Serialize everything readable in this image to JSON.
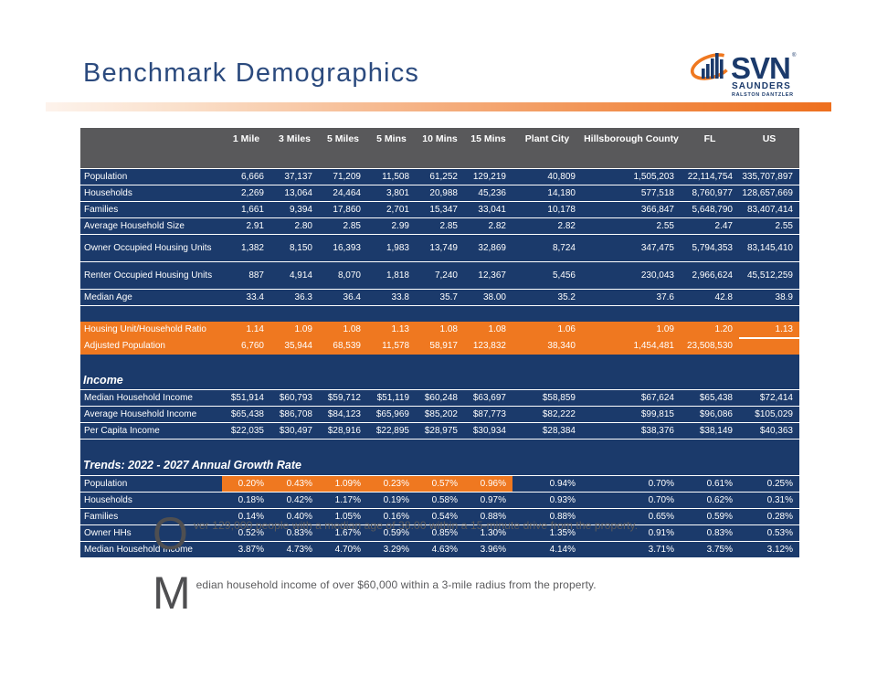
{
  "slide": {
    "title": "Benchmark Demographics",
    "logo": {
      "brand": "SVN",
      "trademark": "®",
      "line1": "SAUNDERS",
      "line2": "RALSTON DANTZLER"
    },
    "colors": {
      "navy": "#1b3a6b",
      "orange": "#ef7820",
      "header_gray": "#59595b",
      "title_blue": "#2b4a7e"
    }
  },
  "table": {
    "columns": [
      "",
      "1 Mile",
      "3 Miles",
      "5 Miles",
      "5 Mins",
      "10 Mins",
      "15 Mins",
      "Plant City",
      "Hillsborough County",
      "FL",
      "US"
    ],
    "sections": [
      {
        "type": "rows",
        "rows": [
          {
            "label": "Population",
            "values": [
              "6,666",
              "37,137",
              "71,209",
              "11,508",
              "61,252",
              "129,219",
              "40,809",
              "1,505,203",
              "22,114,754",
              "335,707,897"
            ]
          },
          {
            "label": "Households",
            "values": [
              "2,269",
              "13,064",
              "24,464",
              "3,801",
              "20,988",
              "45,236",
              "14,180",
              "577,518",
              "8,760,977",
              "128,657,669"
            ]
          },
          {
            "label": "Families",
            "values": [
              "1,661",
              "9,394",
              "17,860",
              "2,701",
              "15,347",
              "33,041",
              "10,178",
              "366,847",
              "5,648,790",
              "83,407,414"
            ]
          },
          {
            "label": "Average Household Size",
            "values": [
              "2.91",
              "2.80",
              "2.85",
              "2.99",
              "2.85",
              "2.82",
              "2.82",
              "2.55",
              "2.47",
              "2.55"
            ]
          },
          {
            "label": "Owner Occupied Housing Units",
            "two_line": true,
            "values": [
              "1,382",
              "8,150",
              "16,393",
              "1,983",
              "13,749",
              "32,869",
              "8,724",
              "347,475",
              "5,794,353",
              "83,145,410"
            ]
          },
          {
            "label": "Renter Occupied Housing Units",
            "two_line": true,
            "values": [
              "887",
              "4,914",
              "8,070",
              "1,818",
              "7,240",
              "12,367",
              "5,456",
              "230,043",
              "2,966,624",
              "45,512,259"
            ]
          },
          {
            "label": "Median Age",
            "values": [
              "33.4",
              "36.3",
              "36.4",
              "33.8",
              "35.7",
              "38.00",
              "35.2",
              "37.6",
              "42.8",
              "38.9"
            ]
          }
        ]
      },
      {
        "type": "spacer"
      },
      {
        "type": "rows",
        "style": "orange",
        "rows": [
          {
            "label": "Housing Unit/Household Ratio",
            "us_underline": true,
            "values": [
              "1.14",
              "1.09",
              "1.08",
              "1.13",
              "1.08",
              "1.08",
              "1.06",
              "1.09",
              "1.20",
              "1.13"
            ]
          },
          {
            "label": "Adjusted Population",
            "values": [
              "6,760",
              "35,944",
              "68,539",
              "11,578",
              "58,917",
              "123,832",
              "38,340",
              "1,454,481",
              "23,508,530",
              ""
            ]
          }
        ]
      },
      {
        "type": "spacer"
      },
      {
        "type": "section-header",
        "title": "Income"
      },
      {
        "type": "rows",
        "rows": [
          {
            "label": "Median Household Income",
            "values": [
              "$51,914",
              "$60,793",
              "$59,712",
              "$51,119",
              "$60,248",
              "$63,697",
              "$58,859",
              "$67,624",
              "$65,438",
              "$72,414"
            ]
          },
          {
            "label": "Average Household Income",
            "values": [
              "$65,438",
              "$86,708",
              "$84,123",
              "$65,969",
              "$85,202",
              "$87,773",
              "$82,222",
              "$99,815",
              "$96,086",
              "$105,029"
            ]
          },
          {
            "label": "Per Capita Income",
            "values": [
              "$22,035",
              "$30,497",
              "$28,916",
              "$22,895",
              "$28,975",
              "$30,934",
              "$28,384",
              "$38,376",
              "$38,149",
              "$40,363"
            ]
          }
        ]
      },
      {
        "type": "spacer"
      },
      {
        "type": "section-header",
        "title": "Trends: 2022 - 2027 Annual Growth Rate"
      },
      {
        "type": "rows",
        "rows": [
          {
            "label": "Population",
            "highlight_through": 6,
            "values": [
              "0.20%",
              "0.43%",
              "1.09%",
              "0.23%",
              "0.57%",
              "0.96%",
              "0.94%",
              "0.70%",
              "0.61%",
              "0.25%"
            ]
          },
          {
            "label": "Households",
            "values": [
              "0.18%",
              "0.42%",
              "1.17%",
              "0.19%",
              "0.58%",
              "0.97%",
              "0.93%",
              "0.70%",
              "0.62%",
              "0.31%"
            ]
          },
          {
            "label": "Families",
            "values": [
              "0.14%",
              "0.40%",
              "1.05%",
              "0.16%",
              "0.54%",
              "0.88%",
              "0.88%",
              "0.65%",
              "0.59%",
              "0.28%"
            ]
          },
          {
            "label": "Owner HHs",
            "values": [
              "0.52%",
              "0.83%",
              "1.67%",
              "0.59%",
              "0.85%",
              "1.30%",
              "1.35%",
              "0.91%",
              "0.83%",
              "0.53%"
            ]
          },
          {
            "label": "Median Household Income",
            "values": [
              "3.87%",
              "4.73%",
              "4.70%",
              "3.29%",
              "4.63%",
              "3.96%",
              "4.14%",
              "3.71%",
              "3.75%",
              "3.12%"
            ]
          }
        ]
      }
    ]
  },
  "callouts": [
    {
      "dropcap": "O",
      "text": "ver 129,000 people with a median age of 38.00 within a 15-minute drive from the property."
    },
    {
      "dropcap": "M",
      "text": "edian household income of over $60,000 within a 3-mile radius from the property."
    }
  ]
}
